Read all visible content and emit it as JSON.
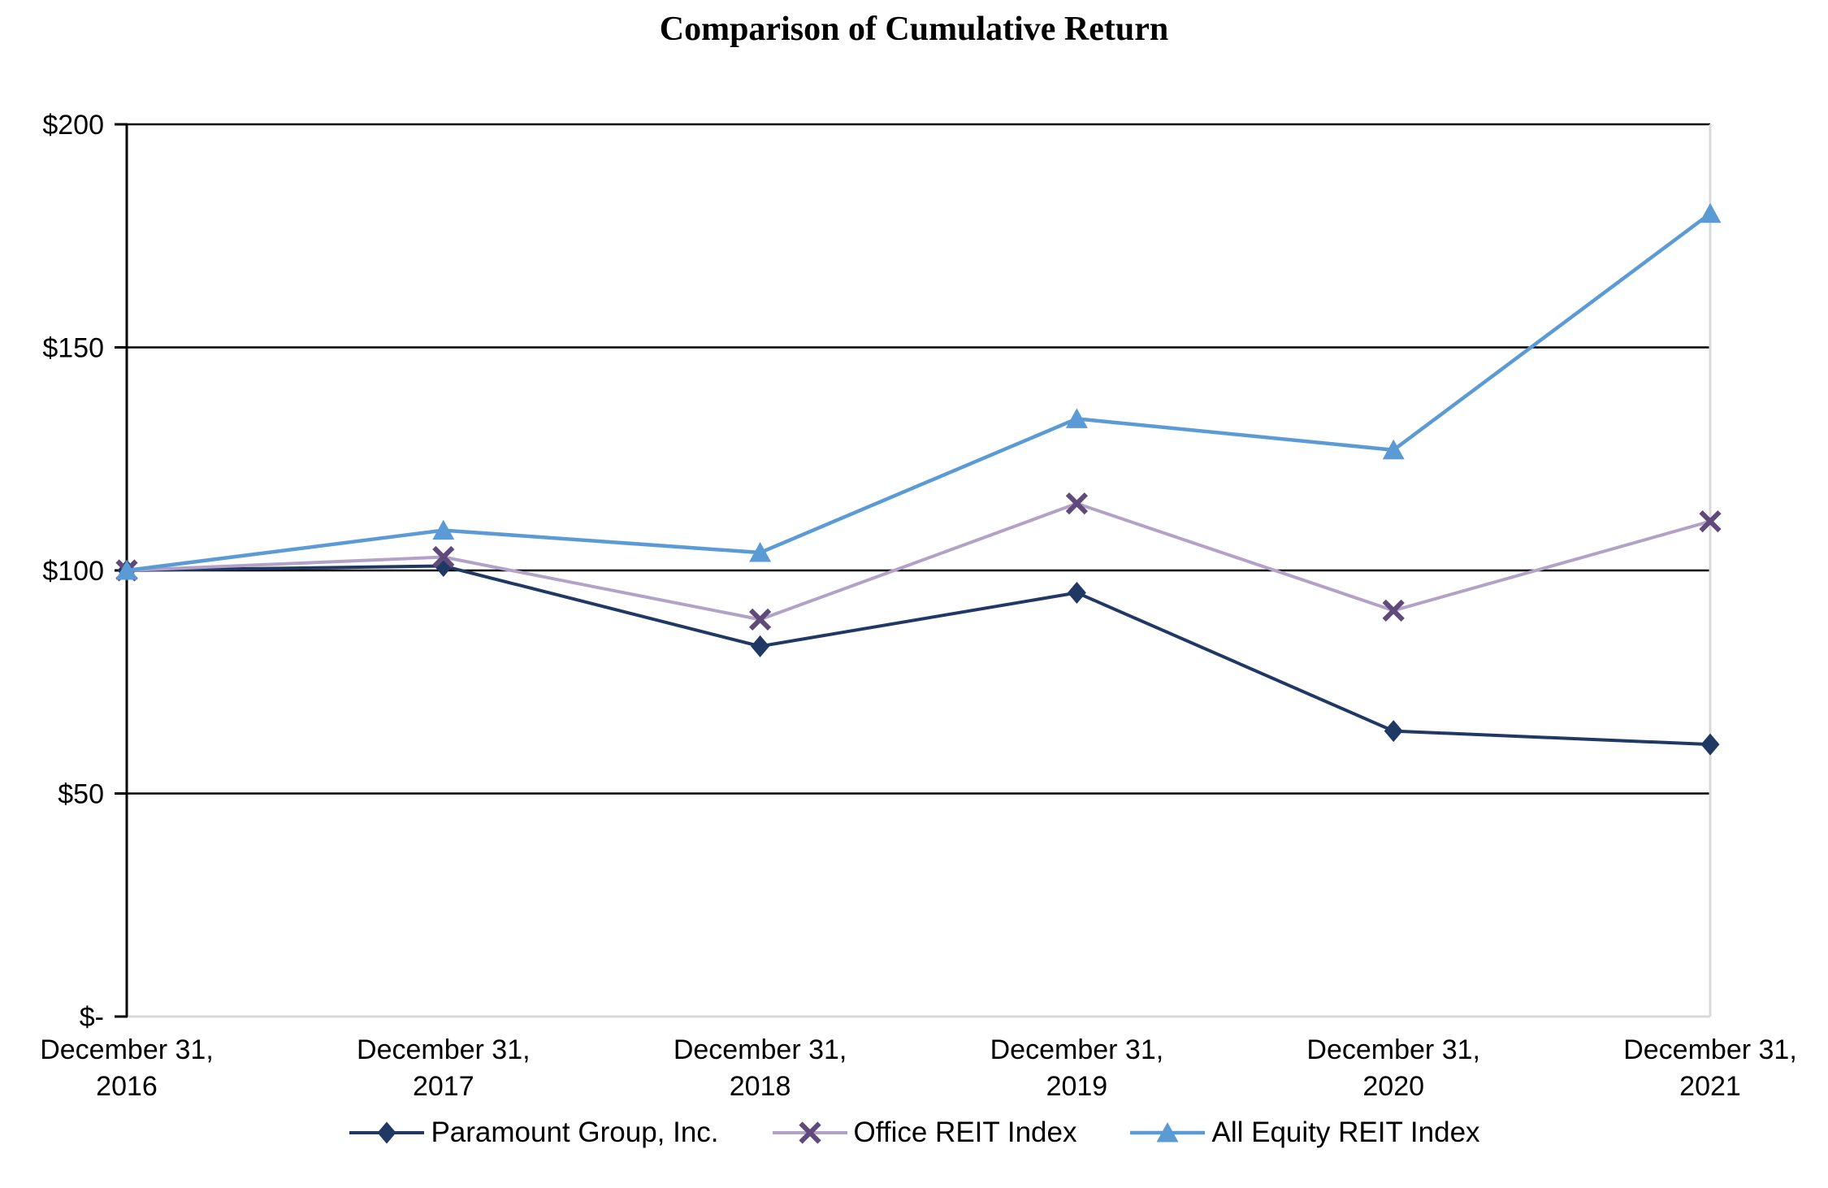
{
  "title": "Comparison of Cumulative Return",
  "chart_data": {
    "type": "line",
    "categories": [
      "December 31, 2016",
      "December 31, 2017",
      "December 31, 2018",
      "December 31, 2019",
      "December 31, 2020",
      "December 31, 2021"
    ],
    "series": [
      {
        "name": "Paramount Group, Inc.",
        "marker": "diamond",
        "line_color": "#1F3864",
        "marker_color": "#1F3864",
        "values": [
          100,
          101,
          83,
          95,
          64,
          61
        ]
      },
      {
        "name": "Office REIT Index",
        "marker": "x",
        "line_color": "#B3A2C7",
        "marker_color": "#604A7B",
        "values": [
          100,
          103,
          89,
          115,
          91,
          111
        ]
      },
      {
        "name": "All Equity REIT Index",
        "marker": "triangle",
        "line_color": "#5B9BD5",
        "marker_color": "#5B9BD5",
        "values": [
          100,
          109,
          104,
          134,
          127,
          180
        ]
      }
    ],
    "ylim": [
      0,
      200
    ],
    "yticks": [
      {
        "value": 0,
        "label": "$-"
      },
      {
        "value": 50,
        "label": "$50"
      },
      {
        "value": 100,
        "label": "$100"
      },
      {
        "value": 150,
        "label": "$150"
      },
      {
        "value": 200,
        "label": "$200"
      }
    ],
    "grid": "horizontal",
    "legend_position": "bottom",
    "colors": {
      "gridline": "#000000",
      "y_axis": "#000000",
      "baseline": "#D9D9D9",
      "right_border": "#D9D9D9",
      "text": "#000000",
      "background": "#FFFFFF"
    }
  }
}
